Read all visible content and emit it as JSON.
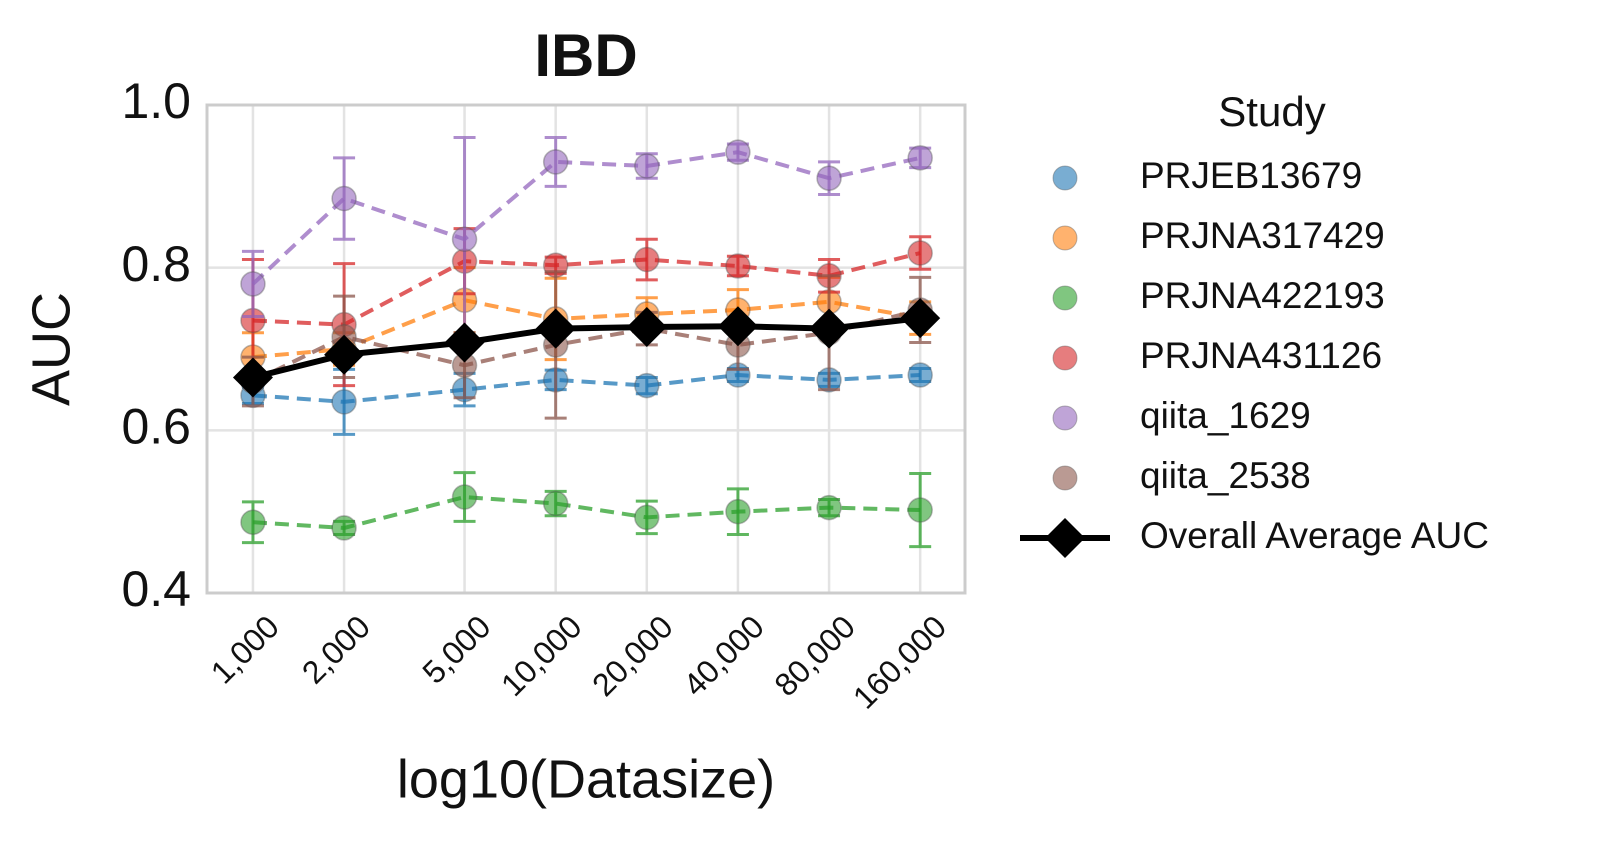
{
  "chart_data": {
    "type": "line",
    "title": "IBD",
    "x_label": "log10(Datasize)",
    "y_label": "AUC",
    "legend_title": "Study",
    "log_x": true,
    "grid": true,
    "x": [
      1000,
      2000,
      5000,
      10000,
      20000,
      40000,
      80000,
      160000
    ],
    "xlim": [
      705,
      225000
    ],
    "xticks": [
      {
        "value": 1000,
        "label": "1,000"
      },
      {
        "value": 2000,
        "label": "2,000"
      },
      {
        "value": 5000,
        "label": "5,000"
      },
      {
        "value": 10000,
        "label": "10,000"
      },
      {
        "value": 20000,
        "label": "20,000"
      },
      {
        "value": 40000,
        "label": "40,000"
      },
      {
        "value": 80000,
        "label": "80,000"
      },
      {
        "value": 160000,
        "label": "160,000"
      }
    ],
    "ylim": [
      0.4,
      1.0
    ],
    "yticks": [
      0.4,
      0.6,
      0.8,
      {
        "value": 1.0,
        "label": "1.0"
      }
    ],
    "series": [
      {
        "name": "PRJEB13679",
        "color": "#1f77b4",
        "values": [
          0.643,
          0.635,
          0.65,
          0.662,
          0.655,
          0.668,
          0.662,
          0.668
        ],
        "errors": [
          0.01,
          0.04,
          0.02,
          0.012,
          0.01,
          0.008,
          0.008,
          0.008
        ]
      },
      {
        "name": "PRJNA317429",
        "color": "#ff7f0e",
        "values": [
          0.69,
          0.7,
          0.76,
          0.737,
          0.743,
          0.748,
          0.758,
          0.738
        ],
        "errors": [
          0.03,
          0.02,
          0.04,
          0.05,
          0.02,
          0.025,
          0.03,
          0.02
        ]
      },
      {
        "name": "PRJNA422193",
        "color": "#2ca02c",
        "values": [
          0.487,
          0.48,
          0.518,
          0.51,
          0.493,
          0.5,
          0.505,
          0.502
        ],
        "errors": [
          0.025,
          0.008,
          0.03,
          0.015,
          0.02,
          0.028,
          0.01,
          0.045
        ]
      },
      {
        "name": "PRJNA431126",
        "color": "#d62728",
        "values": [
          0.735,
          0.73,
          0.808,
          0.803,
          0.81,
          0.802,
          0.79,
          0.818
        ],
        "errors": [
          0.075,
          0.075,
          0.04,
          0.01,
          0.025,
          0.012,
          0.02,
          0.02
        ]
      },
      {
        "name": "qiita_1629",
        "color": "#9467bd",
        "values": [
          0.78,
          0.885,
          0.835,
          0.93,
          0.925,
          0.942,
          0.91,
          0.935
        ],
        "errors": [
          0.04,
          0.05,
          0.125,
          0.03,
          0.015,
          0.01,
          0.02,
          0.012
        ]
      },
      {
        "name": "qiita_2538",
        "color": "#8c564b",
        "values": [
          0.66,
          0.715,
          0.68,
          0.705,
          0.725,
          0.705,
          0.72,
          0.748
        ],
        "errors": [
          0.03,
          0.05,
          0.04,
          0.09,
          0.02,
          0.03,
          0.07,
          0.04
        ]
      }
    ],
    "overall": {
      "name": "Overall Average AUC",
      "color": "#000000",
      "values": [
        0.665,
        0.693,
        0.708,
        0.725,
        0.727,
        0.728,
        0.725,
        0.738
      ]
    }
  }
}
